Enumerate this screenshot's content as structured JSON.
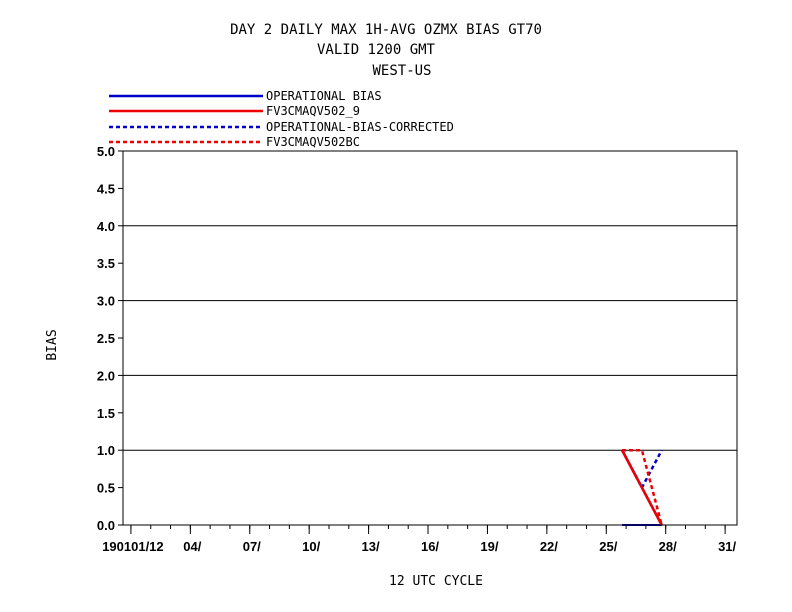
{
  "chart_data": {
    "type": "line",
    "title_lines": [
      "DAY 2 DAILY MAX   1H-AVG OZMX BIAS GT70",
      "VALID 1200 GMT",
      "WEST-US"
    ],
    "xlabel": "12 UTC CYCLE",
    "ylabel": "BIAS",
    "ylim": [
      0,
      5
    ],
    "xlim": [
      0.6,
      31.6
    ],
    "grid": "horizontal",
    "legend_position": "top-left",
    "y_ticks": [
      {
        "value": 0.0,
        "label": "0.0"
      },
      {
        "value": 0.5,
        "label": "0.5"
      },
      {
        "value": 1.0,
        "label": "1.0"
      },
      {
        "value": 1.5,
        "label": "1.5"
      },
      {
        "value": 2.0,
        "label": "2.0"
      },
      {
        "value": 2.5,
        "label": "2.5"
      },
      {
        "value": 3.0,
        "label": "3.0"
      },
      {
        "value": 3.5,
        "label": "3.5"
      },
      {
        "value": 4.0,
        "label": "4.0"
      },
      {
        "value": 4.5,
        "label": "4.5"
      },
      {
        "value": 5.0,
        "label": "5.0"
      }
    ],
    "x_ticks": [
      {
        "value": 1,
        "label": "190101/12"
      },
      {
        "value": 4,
        "label": "04/"
      },
      {
        "value": 7,
        "label": "07/"
      },
      {
        "value": 10,
        "label": "10/"
      },
      {
        "value": 13,
        "label": "13/"
      },
      {
        "value": 16,
        "label": "16/"
      },
      {
        "value": 19,
        "label": "19/"
      },
      {
        "value": 22,
        "label": "22/"
      },
      {
        "value": 25,
        "label": "25/"
      },
      {
        "value": 28,
        "label": "28/"
      },
      {
        "value": 31,
        "label": "31/"
      }
    ],
    "series": [
      {
        "name": "OPERATIONAL      BIAS",
        "color": "#0000cc",
        "dash": "solid",
        "x": [
          25.8,
          27.8
        ],
        "y": [
          1.0,
          0.0
        ]
      },
      {
        "name": "FV3CMAQV502_9",
        "color": "#ee0000",
        "dash": "solid",
        "x": [
          25.8,
          27.8
        ],
        "y": [
          1.0,
          0.0
        ]
      },
      {
        "name": "OPERATIONAL-BIAS-CORRECTED",
        "color": "#0000cc",
        "dash": "dashed",
        "x": [
          25.8,
          26.8,
          27.8
        ],
        "y": [
          1.0,
          0.5,
          1.0
        ]
      },
      {
        "name": "FV3CMAQV502BC",
        "color": "#ee0000",
        "dash": "dashed",
        "x": [
          25.8,
          26.8,
          27.8
        ],
        "y": [
          1.0,
          1.0,
          0.0
        ]
      }
    ],
    "zero_segment": {
      "color": "#0000cc",
      "x": [
        25.8,
        27.8
      ],
      "y": [
        0.0,
        0.0
      ]
    }
  }
}
